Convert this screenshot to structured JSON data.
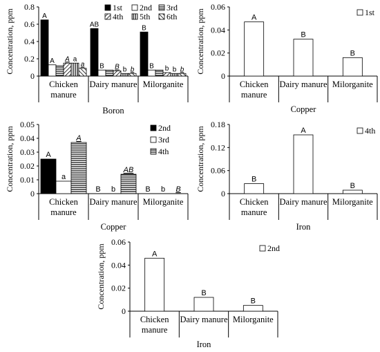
{
  "colors": {
    "axis": "#000000",
    "background": "#ffffff",
    "bar_stroke": "#000000"
  },
  "chart_data": [
    {
      "id": "boron",
      "type": "bar",
      "xlabel": "Boron",
      "ylabel": "Concentration, ppm",
      "ylim": [
        0,
        0.8
      ],
      "yticks": [
        "0",
        "0.2",
        "0.4",
        "0.6",
        "0.8"
      ],
      "categories": [
        "Chicken manure",
        "Dairy manure",
        "Milorganite"
      ],
      "legend": "top-right",
      "series": [
        {
          "name": "1st",
          "pattern": "solid-black",
          "values": [
            0.65,
            0.55,
            0.51
          ],
          "letters": [
            "A",
            "AB",
            "B"
          ],
          "italic": [
            false,
            false,
            false
          ]
        },
        {
          "name": "2nd",
          "pattern": "white",
          "values": [
            0.13,
            0.07,
            0.07
          ],
          "letters": [
            "A",
            "B",
            "B"
          ],
          "italic": [
            false,
            false,
            false
          ]
        },
        {
          "name": "3rd",
          "pattern": "horizontal-lines",
          "values": [
            0.12,
            0.07,
            0.07
          ],
          "letters": [
            "",
            "",
            ""
          ],
          "italic": [
            false,
            false,
            false
          ]
        },
        {
          "name": "4th",
          "pattern": "diagonal-up",
          "values": [
            0.15,
            0.06,
            0.04
          ],
          "letters": [
            "A",
            "B",
            "b"
          ],
          "italic": [
            true,
            true,
            false
          ]
        },
        {
          "name": "5th",
          "pattern": "vertical-lines",
          "values": [
            0.15,
            0.03,
            0.03
          ],
          "letters": [
            "a",
            "b",
            "b"
          ],
          "italic": [
            false,
            false,
            false
          ]
        },
        {
          "name": "6th",
          "pattern": "diagonal-down",
          "values": [
            0.09,
            0.03,
            0.03
          ],
          "letters": [
            "a",
            "b",
            "b"
          ],
          "italic": [
            true,
            true,
            true
          ]
        }
      ]
    },
    {
      "id": "copper-1st",
      "type": "bar",
      "xlabel": "Copper",
      "ylabel": "Concentration, ppm",
      "ylim": [
        0,
        0.06
      ],
      "yticks": [
        "0",
        "0.02",
        "0.04",
        "0.06"
      ],
      "categories": [
        "Chicken manure",
        "Dairy manure",
        "Milorganite"
      ],
      "legend": "top-right",
      "series": [
        {
          "name": "1st",
          "pattern": "white",
          "values": [
            0.047,
            0.032,
            0.016
          ],
          "letters": [
            "A",
            "B",
            "B"
          ],
          "italic": [
            false,
            false,
            false
          ]
        }
      ]
    },
    {
      "id": "copper-multi",
      "type": "bar",
      "xlabel": "Copper",
      "ylabel": "Concentration, ppm",
      "ylim": [
        0,
        0.05
      ],
      "yticks": [
        "0",
        "0.01",
        "0.02",
        "0.03",
        "0.04",
        "0.05"
      ],
      "categories": [
        "Chicken manure",
        "Dairy manure",
        "Milorganite"
      ],
      "legend": "top-right",
      "series": [
        {
          "name": "2nd",
          "pattern": "solid-black",
          "values": [
            0.025,
            0.0,
            0.0
          ],
          "letters": [
            "A",
            "B",
            "B"
          ],
          "italic": [
            false,
            false,
            false
          ]
        },
        {
          "name": "3rd",
          "pattern": "white",
          "values": [
            0.009,
            0.0,
            0.0
          ],
          "letters": [
            "a",
            "b",
            "b"
          ],
          "italic": [
            false,
            false,
            false
          ]
        },
        {
          "name": "4th",
          "pattern": "horizontal-lines",
          "values": [
            0.037,
            0.014,
            0.0
          ],
          "letters": [
            "A",
            "AB",
            "B"
          ],
          "italic": [
            true,
            true,
            true
          ]
        }
      ]
    },
    {
      "id": "iron-4th",
      "type": "bar",
      "xlabel": "Iron",
      "ylabel": "Concentration, ppm",
      "ylim": [
        0,
        0.18
      ],
      "yticks": [
        "0",
        "0.06",
        "0.12",
        "0.18"
      ],
      "categories": [
        "Chicken manure",
        "Dairy manure",
        "Milorganite"
      ],
      "legend": "top-right",
      "series": [
        {
          "name": "4th",
          "pattern": "white",
          "values": [
            0.026,
            0.153,
            0.009
          ],
          "letters": [
            "B",
            "A",
            "B"
          ],
          "italic": [
            false,
            false,
            false
          ]
        }
      ]
    },
    {
      "id": "iron-2nd",
      "type": "bar",
      "xlabel": "Iron",
      "ylabel": "Concentration, ppm",
      "ylim": [
        0,
        0.06
      ],
      "yticks": [
        "0",
        "0.02",
        "0.04",
        "0.06"
      ],
      "categories": [
        "Chicken manure",
        "Dairy manure",
        "Milorganite"
      ],
      "legend": "top-right",
      "series": [
        {
          "name": "2nd",
          "pattern": "white",
          "values": [
            0.046,
            0.012,
            0.005
          ],
          "letters": [
            "A",
            "B",
            "B"
          ],
          "italic": [
            false,
            false,
            false
          ]
        }
      ]
    }
  ]
}
